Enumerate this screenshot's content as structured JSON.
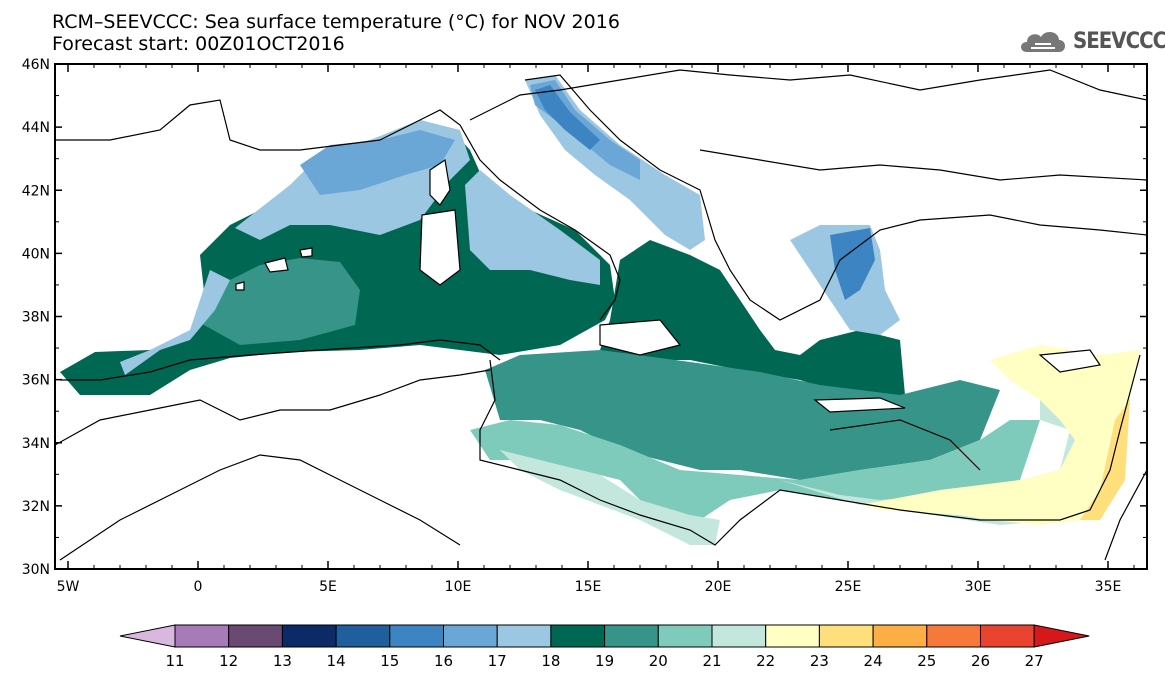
{
  "title": {
    "line1": "RCM–SEEVCCC: Sea surface temperature (°C) for NOV 2016",
    "line2": "Forecast start: 00Z01OCT2016"
  },
  "logo": {
    "icon": "cloud-icon",
    "text": "SEEVCCC"
  },
  "map": {
    "lat_labels": [
      "46N",
      "44N",
      "42N",
      "40N",
      "38N",
      "36N",
      "34N",
      "32N",
      "30N"
    ],
    "lon_labels": [
      "5W",
      "0",
      "5E",
      "10E",
      "15E",
      "20E",
      "25E",
      "30E",
      "35E"
    ],
    "lat_range": [
      30,
      46
    ],
    "lon_range": [
      -5.5,
      36.5
    ]
  },
  "colorbar": {
    "labels": [
      "11",
      "12",
      "13",
      "14",
      "15",
      "16",
      "17",
      "18",
      "19",
      "20",
      "21",
      "22",
      "23",
      "24",
      "25",
      "26",
      "27"
    ],
    "colors": {
      "under": "#d9b8e0",
      "c11_12": "#a77ab8",
      "c12_13": "#6a4a72",
      "c13_14": "#0b2a66",
      "c14_15": "#1f5f9e",
      "c15_16": "#3d84c2",
      "c16_17": "#6aa6d6",
      "c17_18": "#9cc7e2",
      "c18_19": "#006753",
      "c19_20": "#379488",
      "c20_21": "#7fcbbb",
      "c21_22": "#c4e7dd",
      "c22_23": "#ffffc4",
      "c23_24": "#ffdf7b",
      "c24_25": "#fdae45",
      "c25_26": "#f6793b",
      "c26_27": "#ea4430",
      "over": "#d7181b"
    }
  }
}
